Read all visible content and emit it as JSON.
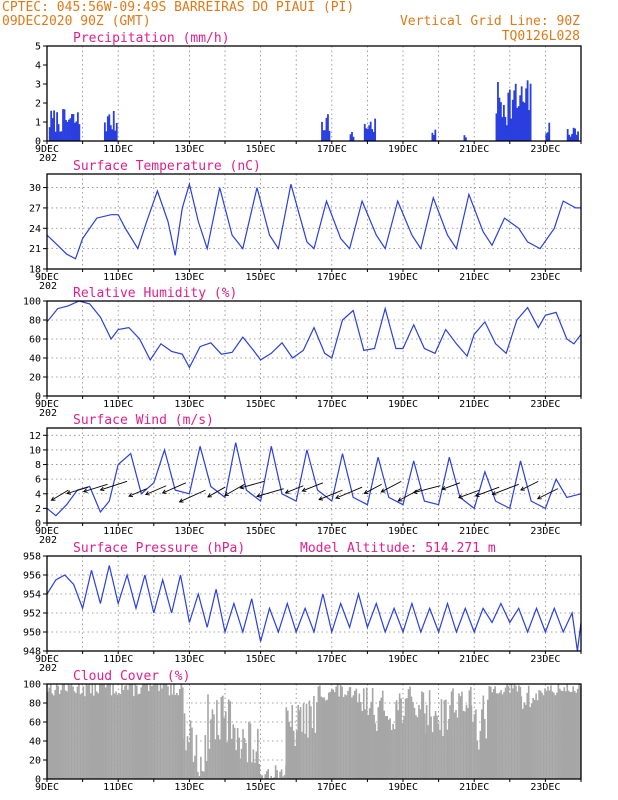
{
  "header": {
    "line1_left": "CPTEC:  045:56W-09:49S  BARREIRAS DO PIAUI (PI)",
    "line2_left": "09DEC2020 90Z (GMT)",
    "line2_right": "Vertical Grid Line: 90Z",
    "line3_right": "TQ0126L028"
  },
  "colors": {
    "header": "#e07a18",
    "title": "#e0208c",
    "line": "#2a3fe0",
    "bar": "#2a3fe0",
    "cloud": "#a6a6a6"
  },
  "x_day_labels": [
    "9DEC",
    "11DEC",
    "13DEC",
    "15DEC",
    "17DEC",
    "19DEC",
    "21DEC",
    "23DEC"
  ],
  "x_labels_days": [
    9,
    11,
    13,
    15,
    17,
    19,
    21,
    23
  ],
  "x_range_days": [
    9,
    24
  ],
  "year_fragment": "202",
  "chart_data": [
    {
      "id": "precip",
      "type": "bar",
      "title": "Precipitation (mm/h)",
      "ylim": [
        0,
        5
      ],
      "yticks": [
        0,
        1,
        2,
        3,
        4,
        5
      ],
      "bursts": [
        [
          9.05,
          9.9,
          1.7
        ],
        [
          10.6,
          10.95,
          1.6
        ],
        [
          16.7,
          16.95,
          1.7
        ],
        [
          17.5,
          17.6,
          0.5
        ],
        [
          17.9,
          18.2,
          1.3
        ],
        [
          19.8,
          19.9,
          0.6
        ],
        [
          20.7,
          20.75,
          0.5
        ],
        [
          21.6,
          22.6,
          3.3
        ],
        [
          23.0,
          23.1,
          1.0
        ],
        [
          23.6,
          23.9,
          0.8
        ]
      ]
    },
    {
      "id": "temp",
      "type": "line",
      "title": "Surface Temperature (nC)",
      "ylim": [
        18,
        32
      ],
      "yticks": [
        18,
        21,
        24,
        27,
        30
      ],
      "gridlines": [
        18,
        21,
        24,
        27,
        30
      ],
      "x": [
        9.0,
        9.3,
        9.55,
        9.8,
        10.0,
        10.4,
        10.8,
        11.0,
        11.2,
        11.55,
        11.8,
        12.1,
        12.4,
        12.6,
        12.8,
        13.0,
        13.25,
        13.5,
        13.85,
        14.2,
        14.5,
        14.9,
        15.25,
        15.5,
        15.85,
        16.3,
        16.5,
        16.85,
        17.25,
        17.5,
        17.85,
        18.25,
        18.5,
        18.85,
        19.25,
        19.5,
        19.85,
        20.25,
        20.5,
        20.85,
        21.25,
        21.5,
        21.85,
        22.25,
        22.5,
        22.85,
        23.25,
        23.5,
        23.85,
        24.0
      ],
      "y": [
        23,
        21.5,
        20.2,
        19.5,
        22.5,
        25.5,
        26,
        26,
        24,
        21,
        25,
        29.5,
        25,
        20,
        27,
        30.5,
        25,
        21,
        30,
        23,
        21,
        30,
        23,
        21,
        30.5,
        22,
        21,
        28,
        22.5,
        21,
        28,
        23,
        21,
        28,
        23,
        21,
        28.5,
        23,
        21,
        29,
        23.5,
        21.5,
        25.5,
        24,
        22,
        21,
        24,
        28,
        27,
        27
      ]
    },
    {
      "id": "rh",
      "type": "line",
      "title": "Relative Humidity (%)",
      "ylim": [
        0,
        100
      ],
      "yticks": [
        0,
        20,
        40,
        60,
        80,
        100
      ],
      "gridlines": [
        20,
        40,
        60,
        80
      ],
      "x": [
        9.0,
        9.3,
        9.6,
        9.9,
        10.2,
        10.5,
        10.8,
        11.0,
        11.3,
        11.6,
        11.9,
        12.2,
        12.5,
        12.8,
        13.0,
        13.3,
        13.6,
        13.9,
        14.2,
        14.5,
        14.8,
        15.0,
        15.3,
        15.6,
        15.9,
        16.2,
        16.5,
        16.8,
        17.0,
        17.3,
        17.6,
        17.9,
        18.2,
        18.5,
        18.8,
        19.0,
        19.3,
        19.6,
        19.9,
        20.2,
        20.5,
        20.8,
        21.0,
        21.3,
        21.6,
        21.9,
        22.2,
        22.5,
        22.8,
        23.0,
        23.3,
        23.6,
        23.8,
        24.0
      ],
      "y": [
        78,
        92,
        95,
        100,
        97,
        83,
        60,
        70,
        72,
        60,
        38,
        55,
        47,
        44,
        30,
        52,
        56,
        44,
        46,
        62,
        48,
        38,
        45,
        56,
        40,
        48,
        72,
        45,
        40,
        80,
        90,
        48,
        50,
        92,
        50,
        50,
        75,
        50,
        45,
        70,
        55,
        42,
        65,
        78,
        55,
        45,
        80,
        93,
        72,
        85,
        88,
        60,
        55,
        65
      ]
    },
    {
      "id": "wind",
      "type": "line",
      "title": "Surface Wind (m/s)",
      "ylim": [
        0,
        13
      ],
      "yticks": [
        0,
        2,
        4,
        6,
        8,
        10,
        12
      ],
      "gridlines": [
        2,
        4,
        6,
        8,
        10,
        12
      ],
      "x": [
        9.0,
        9.25,
        9.55,
        9.85,
        10.2,
        10.5,
        10.75,
        11.0,
        11.35,
        11.65,
        12.0,
        12.3,
        12.6,
        13.0,
        13.3,
        13.6,
        14.0,
        14.3,
        14.6,
        15.0,
        15.3,
        15.6,
        16.0,
        16.3,
        16.6,
        17.0,
        17.3,
        17.6,
        18.0,
        18.3,
        18.6,
        19.0,
        19.3,
        19.6,
        20.0,
        20.3,
        20.6,
        21.0,
        21.3,
        21.6,
        22.0,
        22.3,
        22.6,
        23.0,
        23.3,
        23.6,
        24.0
      ],
      "y": [
        2,
        1,
        2.5,
        4.5,
        5,
        1.5,
        3,
        8,
        9.5,
        4,
        5.5,
        10,
        4.5,
        4,
        10.5,
        5,
        3.5,
        11,
        4.5,
        3,
        10.5,
        4,
        3,
        10,
        4.5,
        3,
        9.5,
        3.5,
        2.5,
        9,
        3.5,
        2.5,
        8.5,
        3,
        2.5,
        9,
        3.5,
        2,
        7,
        3,
        2,
        8.5,
        3,
        2,
        6,
        3.5,
        4
      ]
    },
    {
      "id": "pressure",
      "type": "line",
      "title": "Surface Pressure (hPa)",
      "annotation_label": "Model Altitude:",
      "annotation_value": "514.271 m",
      "ylim": [
        948,
        958
      ],
      "yticks": [
        948,
        950,
        952,
        954,
        956,
        958
      ],
      "gridlines": [
        950,
        952,
        954,
        956
      ],
      "x": [
        9.0,
        9.25,
        9.5,
        9.75,
        10.0,
        10.25,
        10.5,
        10.75,
        11.0,
        11.25,
        11.5,
        11.75,
        12.0,
        12.25,
        12.5,
        12.75,
        13.0,
        13.25,
        13.5,
        13.75,
        14.0,
        14.25,
        14.5,
        14.75,
        15.0,
        15.25,
        15.5,
        15.75,
        16.0,
        16.25,
        16.5,
        16.75,
        17.0,
        17.25,
        17.5,
        17.75,
        18.0,
        18.25,
        18.5,
        18.75,
        19.0,
        19.25,
        19.5,
        19.75,
        20.0,
        20.25,
        20.5,
        20.75,
        21.0,
        21.25,
        21.5,
        21.75,
        22.0,
        22.25,
        22.5,
        22.75,
        23.0,
        23.25,
        23.5,
        23.75,
        23.9,
        24.0
      ],
      "y": [
        954,
        955.5,
        956,
        955,
        952.5,
        956.5,
        953,
        957,
        953,
        956,
        952.5,
        956,
        952,
        955.5,
        952,
        956,
        951,
        954,
        950.5,
        954.5,
        950,
        953,
        950,
        953.5,
        949,
        952.5,
        950,
        953,
        950,
        952.5,
        950,
        954,
        950,
        953,
        950.5,
        954,
        950.5,
        953,
        950,
        952.5,
        950,
        953,
        950,
        952.5,
        950,
        953,
        950,
        952.5,
        950,
        952.5,
        951,
        953,
        951,
        952.5,
        950,
        952.5,
        950,
        952.5,
        950,
        952,
        948,
        951
      ]
    },
    {
      "id": "cloud",
      "type": "bar",
      "title": "Cloud Cover (%)",
      "ylim": [
        0,
        100
      ],
      "yticks": [
        0,
        20,
        40,
        60,
        80,
        100
      ],
      "gridlines": [
        20,
        40,
        60,
        80
      ],
      "segments": [
        [
          9.0,
          12.8,
          97,
          10
        ],
        [
          12.8,
          13.05,
          50,
          20
        ],
        [
          13.05,
          13.5,
          25,
          25
        ],
        [
          13.5,
          14.4,
          60,
          30
        ],
        [
          14.4,
          14.9,
          35,
          30
        ],
        [
          14.9,
          15.7,
          8,
          8
        ],
        [
          15.7,
          16.1,
          55,
          25
        ],
        [
          16.1,
          16.6,
          65,
          25
        ],
        [
          16.6,
          17.5,
          92,
          10
        ],
        [
          17.5,
          18.2,
          82,
          15
        ],
        [
          18.2,
          18.8,
          72,
          22
        ],
        [
          18.8,
          19.6,
          78,
          20
        ],
        [
          19.6,
          20.3,
          70,
          25
        ],
        [
          20.3,
          20.9,
          82,
          18
        ],
        [
          20.9,
          21.4,
          58,
          30
        ],
        [
          21.4,
          22.3,
          95,
          6
        ],
        [
          22.3,
          22.8,
          85,
          15
        ],
        [
          22.8,
          23.3,
          93,
          8
        ],
        [
          23.3,
          24.0,
          95,
          6
        ]
      ]
    }
  ],
  "panels_layout_note": ""
}
